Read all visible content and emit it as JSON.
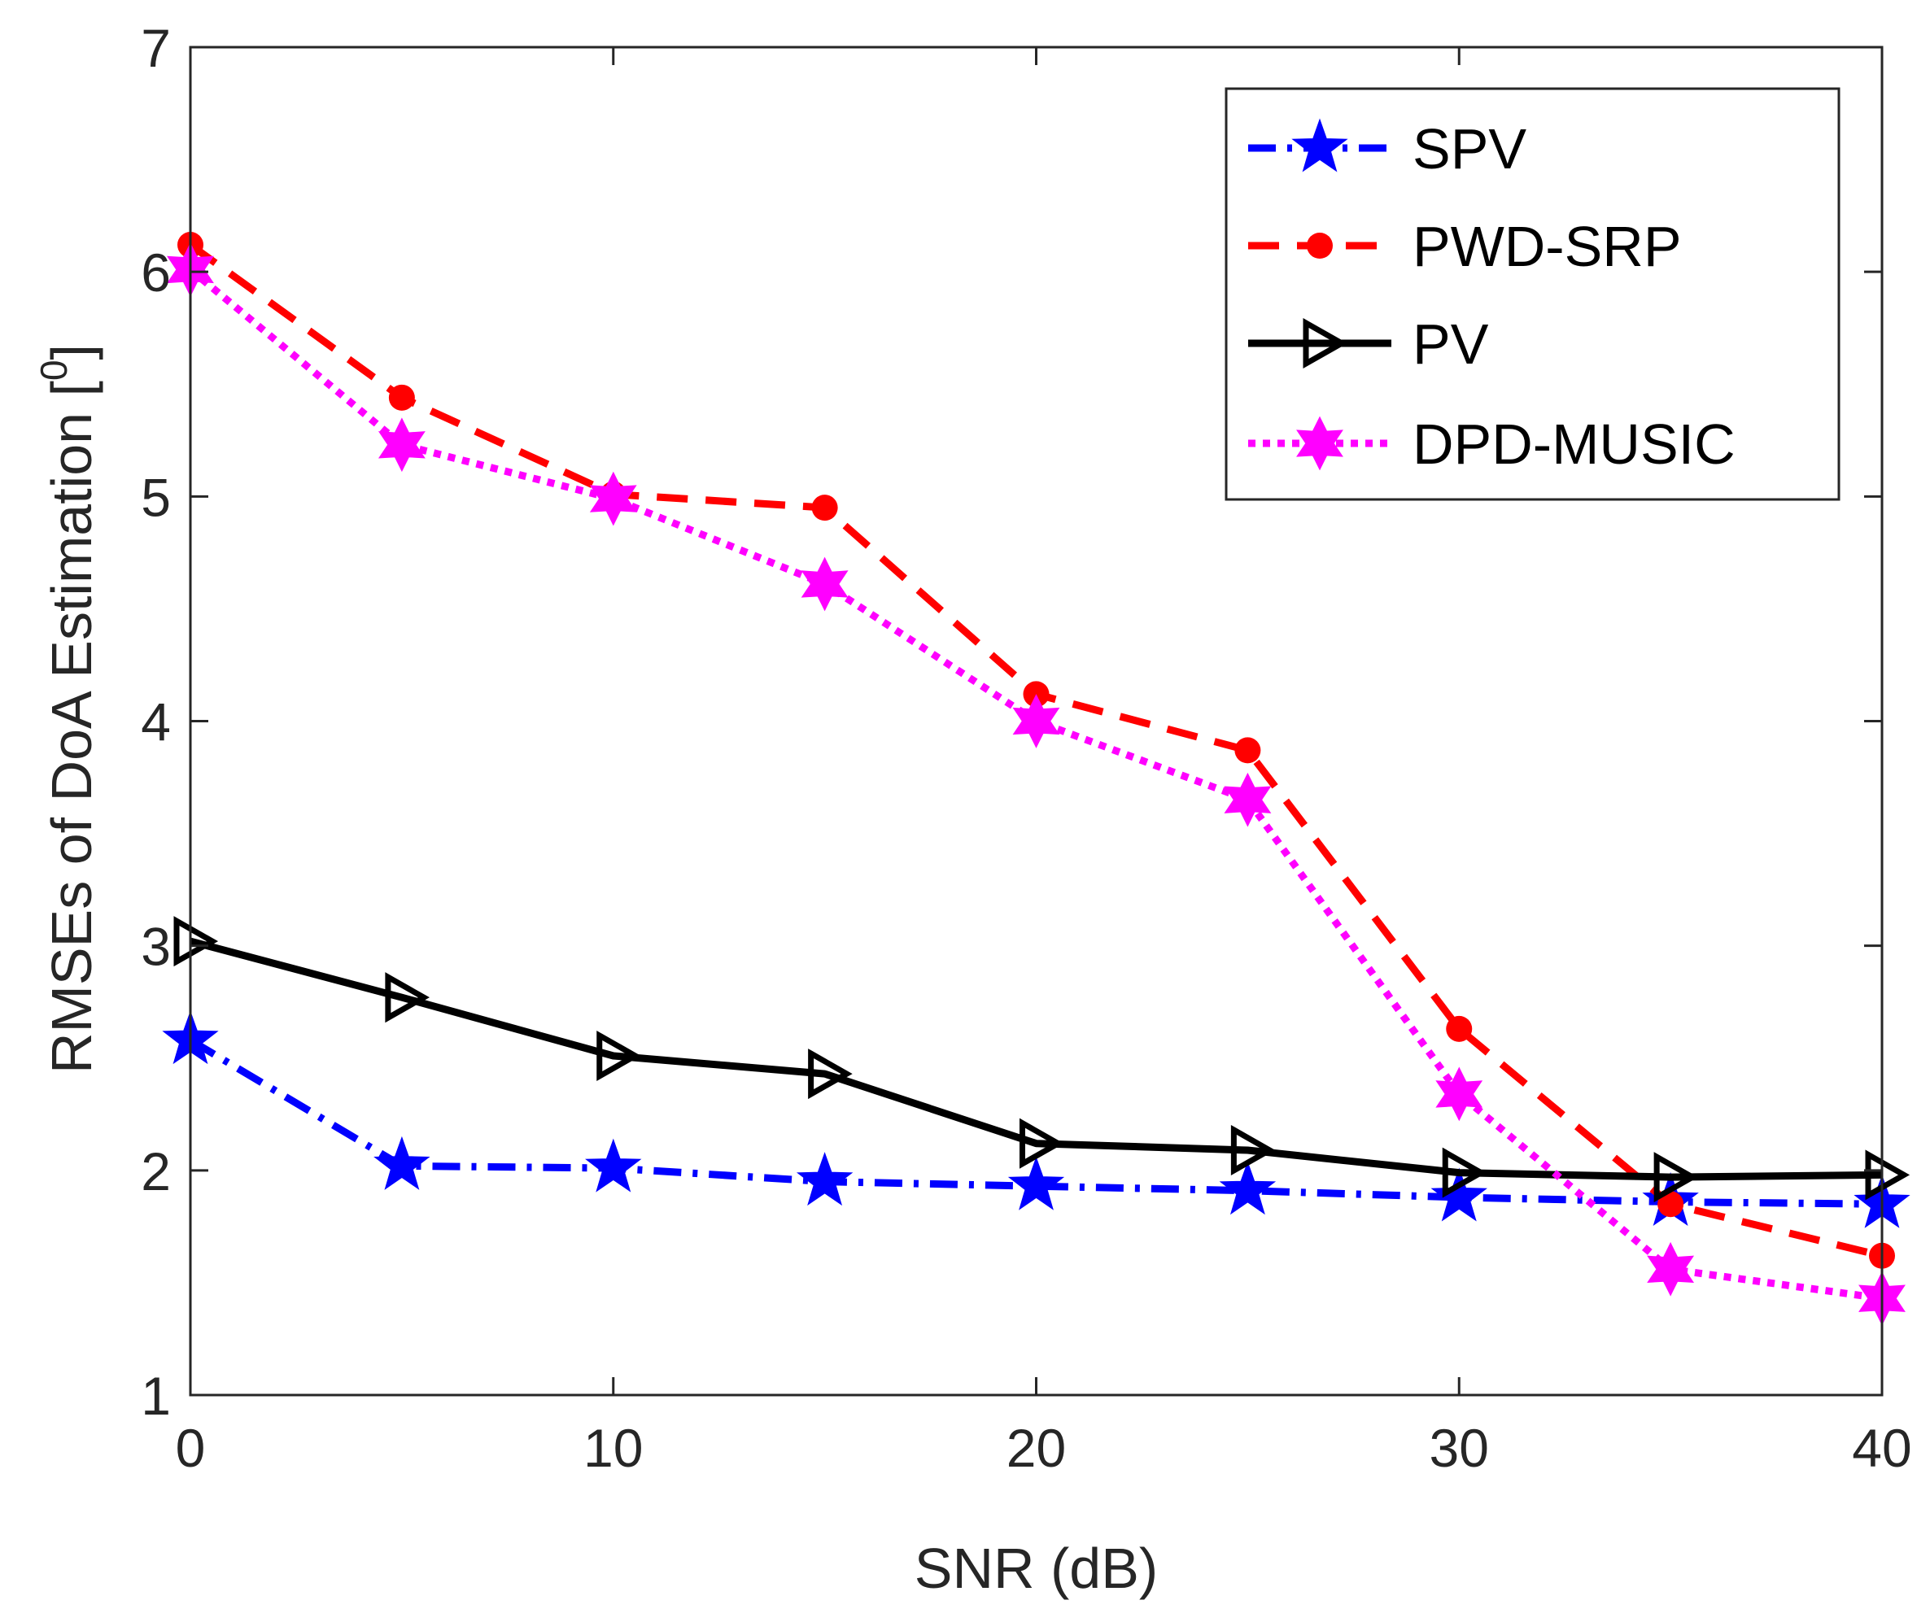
{
  "chart_data": {
    "type": "line",
    "title": "",
    "xlabel": "SNR (dB)",
    "ylabel_main": "RMSEs of DoA Estimation [",
    "ylabel_sup": "0",
    "ylabel_end": "]",
    "xlim": [
      0,
      40
    ],
    "ylim": [
      1,
      7
    ],
    "xticks": [
      0,
      10,
      20,
      30,
      40
    ],
    "yticks": [
      1,
      2,
      3,
      4,
      5,
      6,
      7
    ],
    "grid": false,
    "legend_position": "top-right",
    "x": [
      0,
      5,
      10,
      15,
      20,
      25,
      30,
      35,
      40
    ],
    "series": [
      {
        "name": "SPV",
        "color": "#0000ff",
        "dash": "dashdot",
        "marker": "star5",
        "values": [
          2.58,
          2.02,
          2.01,
          1.95,
          1.93,
          1.91,
          1.88,
          1.86,
          1.85
        ]
      },
      {
        "name": "PWD-SRP",
        "color": "#ff0000",
        "dash": "dashed",
        "marker": "dot",
        "values": [
          6.12,
          5.44,
          5.01,
          4.95,
          4.12,
          3.87,
          2.63,
          1.85,
          1.62
        ]
      },
      {
        "name": "PV",
        "color": "#000000",
        "dash": "solid",
        "marker": "triangle-right",
        "values": [
          3.02,
          2.77,
          2.51,
          2.43,
          2.12,
          2.09,
          1.99,
          1.97,
          1.98
        ]
      },
      {
        "name": "DPD-MUSIC",
        "color": "#ff00ff",
        "dash": "dotted",
        "marker": "star6",
        "values": [
          6.01,
          5.23,
          4.99,
          4.61,
          4.0,
          3.65,
          2.34,
          1.56,
          1.43
        ]
      }
    ]
  }
}
